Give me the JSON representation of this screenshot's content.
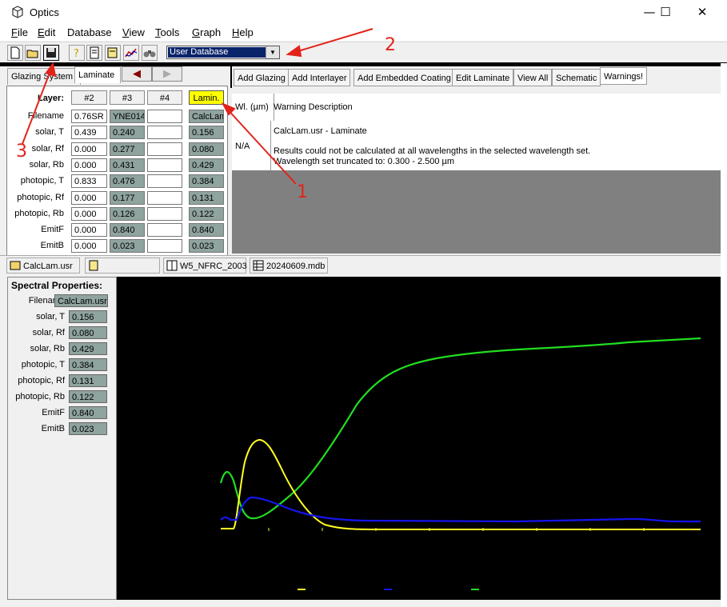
{
  "window": {
    "title": "Optics",
    "minimize_glyph": "—",
    "maximize_glyph": "☐",
    "close_glyph": "✕"
  },
  "menu": [
    {
      "first": "F",
      "rest": "ile"
    },
    {
      "first": "E",
      "rest": "dit"
    },
    {
      "first": "",
      "rest": "Database"
    },
    {
      "first": "V",
      "rest": "iew"
    },
    {
      "first": "T",
      "rest": "ools"
    },
    {
      "first": "G",
      "rest": "raph"
    },
    {
      "first": "H",
      "rest": "elp"
    }
  ],
  "toolbar": {
    "icons": [
      "new-file-icon",
      "open-folder-icon",
      "save-icon",
      "help-icon",
      "document-icon",
      "edit-icon",
      "chart-icon",
      "binoculars-icon"
    ],
    "database_select": "User Database"
  },
  "tabs": {
    "glazing_system": "Glazing System",
    "laminate": "Laminate",
    "back_arrow": "◀",
    "forward_arrow": "▶"
  },
  "laminate_grid": {
    "layer_label": "Layer:",
    "columns": [
      "#2",
      "#3",
      "#4",
      "Lamin."
    ],
    "rows": [
      {
        "label": "Filename",
        "values": [
          "0.76SR",
          "YNE014",
          "",
          "CalcLam"
        ]
      },
      {
        "label": "solar, T",
        "values": [
          "0.439",
          "0.240",
          "",
          "0.156"
        ]
      },
      {
        "label": "solar, Rf",
        "values": [
          "0.000",
          "0.277",
          "",
          "0.080"
        ]
      },
      {
        "label": "solar, Rb",
        "values": [
          "0.000",
          "0.431",
          "",
          "0.429"
        ]
      },
      {
        "label": "photopic, T",
        "values": [
          "0.833",
          "0.476",
          "",
          "0.384"
        ]
      },
      {
        "label": "photopic, Rf",
        "values": [
          "0.000",
          "0.177",
          "",
          "0.131"
        ]
      },
      {
        "label": "photopic, Rb",
        "values": [
          "0.000",
          "0.126",
          "",
          "0.122"
        ]
      },
      {
        "label": "EmitF",
        "values": [
          "0.000",
          "0.840",
          "",
          "0.840"
        ]
      },
      {
        "label": "EmitB",
        "values": [
          "0.000",
          "0.023",
          "",
          "0.023"
        ]
      }
    ]
  },
  "actions": [
    "Add Glazing",
    "Add Interlayer",
    "Add Embedded Coating",
    "Edit Laminate",
    "View All",
    "Schematic",
    "Warnings!"
  ],
  "warnings": {
    "col_wl": "Wl. (µm)",
    "col_desc": "Warning Description",
    "row_wl": "N/A",
    "line1": "CalcLam.usr - Laminate",
    "line2": "Results could not be calculated at all wavelengths in the selected wavelength set.",
    "line3": "Wavelength set truncated to: 0.300 - 2.500 µm"
  },
  "file_tabs": [
    "CalcLam.usr",
    "",
    "W5_NFRC_2003",
    "20240609.mdb"
  ],
  "spectral": {
    "title": "Spectral Properties:",
    "rows": [
      {
        "label": "Filename",
        "value": "CalcLam.usr"
      },
      {
        "label": "solar, T",
        "value": "0.156"
      },
      {
        "label": "solar, Rf",
        "value": "0.080"
      },
      {
        "label": "solar, Rb",
        "value": "0.429"
      },
      {
        "label": "photopic, T",
        "value": "0.384"
      },
      {
        "label": "photopic, Rf",
        "value": "0.131"
      },
      {
        "label": "photopic, Rb",
        "value": "0.122"
      },
      {
        "label": "EmitF",
        "value": "0.840"
      },
      {
        "label": "EmitB",
        "value": "0.023"
      }
    ]
  },
  "annotations": [
    "1",
    "2",
    "3"
  ],
  "colors": {
    "accent_red": "#e2231a",
    "lamin_yellow": "#ffff00",
    "cell_grey": "#8fa39f",
    "series_green": "#22dd22",
    "series_yellow": "#ffff22",
    "series_blue": "#1515ee"
  }
}
